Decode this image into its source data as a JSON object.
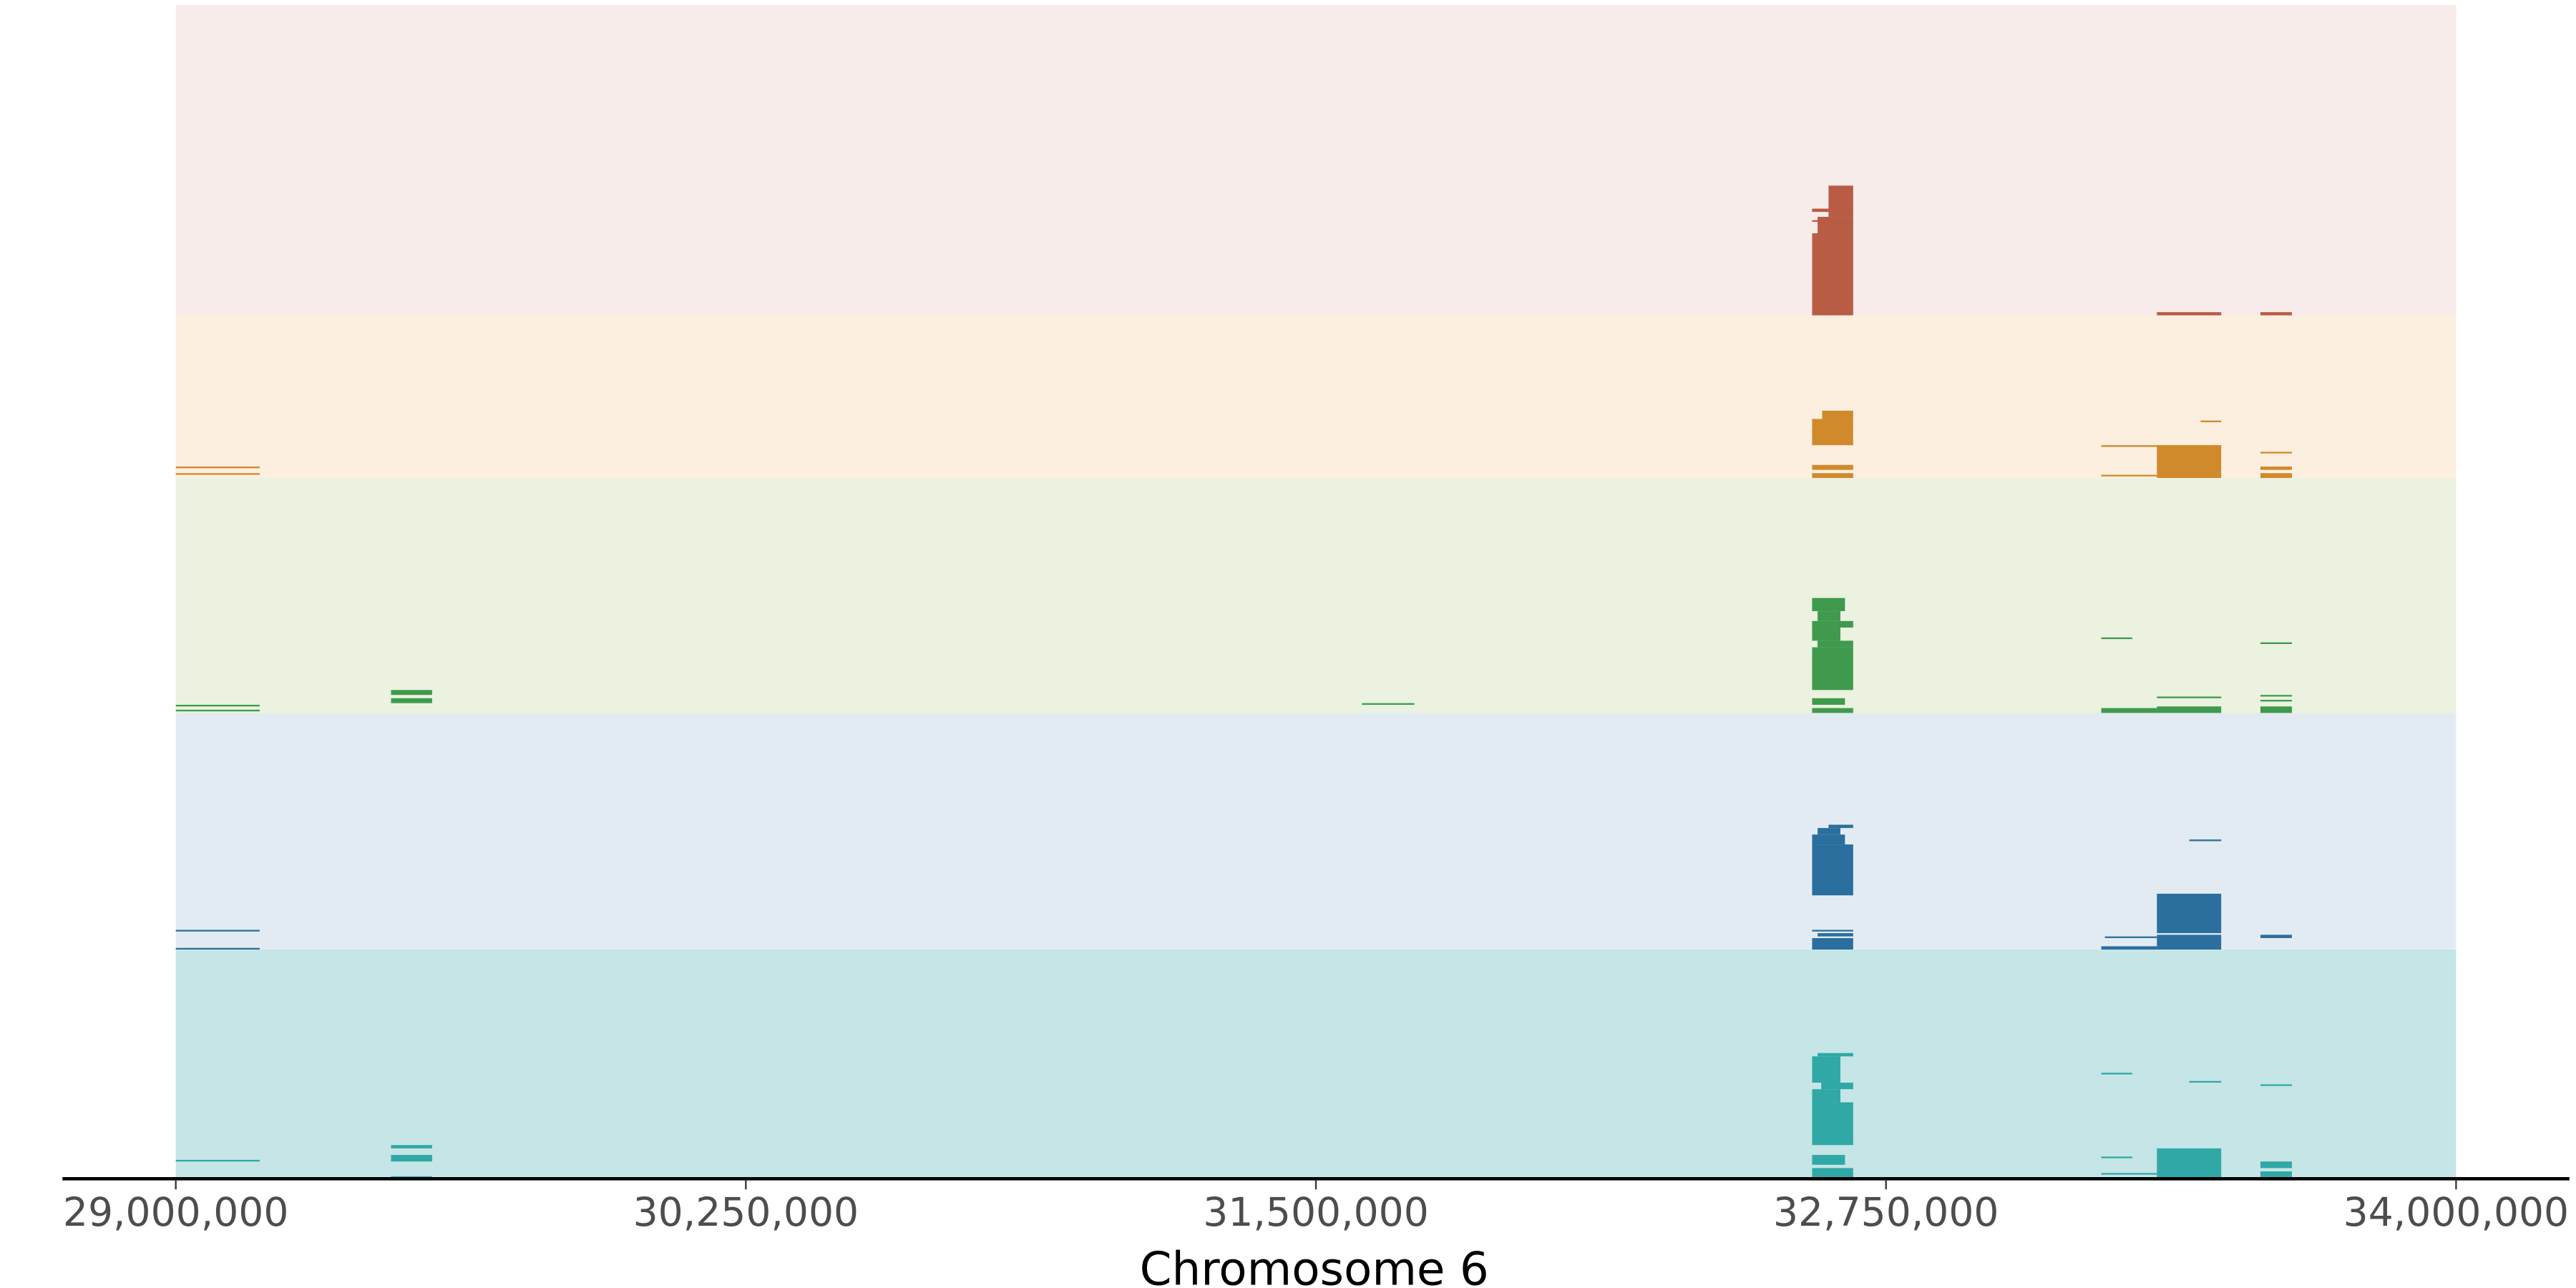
{
  "chart_data": {
    "type": "genome-track",
    "xlabel": "Chromosome 6",
    "xlim": [
      29000000,
      34000000
    ],
    "xticks": [
      29000000,
      30250000,
      31500000,
      32750000,
      34000000
    ],
    "xtick_labels": [
      "29,000,000",
      "30,250,000",
      "31,500,000",
      "32,750,000",
      "34,000,000"
    ],
    "grid": false,
    "tracks": [
      {
        "background": "#f8eceb",
        "color": "#b85c44",
        "depth": 189,
        "features": [
          [
            32588000,
            32678000,
            0,
            50
          ],
          [
            32600000,
            32678000,
            50,
            60
          ],
          [
            32624000,
            32678000,
            60,
            79
          ],
          [
            32588000,
            32678000,
            63,
            65
          ],
          [
            32588000,
            32678000,
            57,
            58
          ],
          [
            33344000,
            33485000,
            0,
            2
          ],
          [
            33571000,
            33640000,
            0,
            2
          ]
        ]
      },
      {
        "background": "#fcefdf",
        "color": "#d08a2c",
        "depth": 99,
        "features": [
          [
            32588000,
            32678000,
            20,
            36
          ],
          [
            32610000,
            32678000,
            36,
            41
          ],
          [
            32588000,
            32678000,
            0,
            3
          ],
          [
            32588000,
            32678000,
            5,
            8
          ],
          [
            33344000,
            33485000,
            0,
            20
          ],
          [
            33222000,
            33485000,
            19,
            20
          ],
          [
            33222000,
            33344000,
            1,
            2
          ],
          [
            33571000,
            33640000,
            0,
            3
          ],
          [
            33571000,
            33640000,
            5,
            7
          ],
          [
            33571000,
            33640000,
            15,
            16
          ],
          [
            29000000,
            29184000,
            2,
            3
          ],
          [
            29000000,
            29184000,
            6,
            7
          ],
          [
            33440000,
            33485000,
            34,
            35
          ]
        ]
      },
      {
        "background": "#ebf2df",
        "color": "#3f9a4e",
        "depth": 143,
        "features": [
          [
            32588000,
            32678000,
            14,
            40
          ],
          [
            32600000,
            32678000,
            40,
            44
          ],
          [
            32588000,
            32650000,
            44,
            52
          ],
          [
            32588000,
            32678000,
            52,
            56
          ],
          [
            32600000,
            32650000,
            56,
            62
          ],
          [
            32588000,
            32660000,
            62,
            70
          ],
          [
            32588000,
            32678000,
            0,
            3
          ],
          [
            32588000,
            32660000,
            5,
            9
          ],
          [
            29472000,
            29562000,
            6,
            9
          ],
          [
            29472000,
            29562000,
            11,
            14
          ],
          [
            31601000,
            31716000,
            5,
            6
          ],
          [
            33222000,
            33290000,
            45,
            46
          ],
          [
            33571000,
            33640000,
            42,
            43
          ],
          [
            33571000,
            33640000,
            0,
            4
          ],
          [
            33571000,
            33640000,
            7,
            8
          ],
          [
            33571000,
            33640000,
            10,
            11
          ],
          [
            33344000,
            33485000,
            0,
            4
          ],
          [
            33344000,
            33485000,
            9,
            10
          ],
          [
            33222000,
            33344000,
            0,
            3
          ],
          [
            29000000,
            29184000,
            1,
            2
          ],
          [
            29000000,
            29184000,
            4,
            5
          ]
        ]
      },
      {
        "background": "#e3ebf2",
        "color": "#2a6f9e",
        "depth": 144,
        "features": [
          [
            32588000,
            32678000,
            33,
            64
          ],
          [
            32588000,
            32660000,
            64,
            70
          ],
          [
            32600000,
            32650000,
            70,
            74
          ],
          [
            32624000,
            32678000,
            74,
            76
          ],
          [
            32588000,
            32678000,
            0,
            7
          ],
          [
            32600000,
            32678000,
            8,
            10
          ],
          [
            32588000,
            32678000,
            11,
            12
          ],
          [
            33344000,
            33485000,
            10,
            34
          ],
          [
            33344000,
            33485000,
            0,
            9
          ],
          [
            33222000,
            33344000,
            0,
            2
          ],
          [
            33230000,
            33344000,
            7,
            8
          ],
          [
            33415000,
            33485000,
            66,
            67
          ],
          [
            33571000,
            33640000,
            7,
            9
          ],
          [
            29000000,
            29184000,
            0,
            1
          ],
          [
            29000000,
            29184000,
            11,
            12
          ]
        ]
      },
      {
        "background": "#c5e5e6",
        "color": "#30a8a6",
        "depth": 139,
        "features": [
          [
            32588000,
            32678000,
            20,
            46
          ],
          [
            32588000,
            32650000,
            46,
            54
          ],
          [
            32608000,
            32678000,
            54,
            58
          ],
          [
            32588000,
            32650000,
            58,
            74
          ],
          [
            32600000,
            32678000,
            74,
            76
          ],
          [
            32588000,
            32678000,
            0,
            6
          ],
          [
            32588000,
            32660000,
            8,
            14
          ],
          [
            29472000,
            29562000,
            10,
            14
          ],
          [
            29472000,
            29562000,
            18,
            20
          ],
          [
            29472000,
            29562000,
            0,
            1
          ],
          [
            33222000,
            33290000,
            63,
            64
          ],
          [
            33415000,
            33485000,
            58,
            59
          ],
          [
            33571000,
            33640000,
            56,
            57
          ],
          [
            33571000,
            33640000,
            0,
            4
          ],
          [
            33571000,
            33640000,
            6,
            10
          ],
          [
            33344000,
            33485000,
            0,
            18
          ],
          [
            33222000,
            33344000,
            2,
            3
          ],
          [
            33222000,
            33290000,
            12,
            13
          ],
          [
            29000000,
            29184000,
            10,
            11
          ]
        ]
      }
    ]
  }
}
